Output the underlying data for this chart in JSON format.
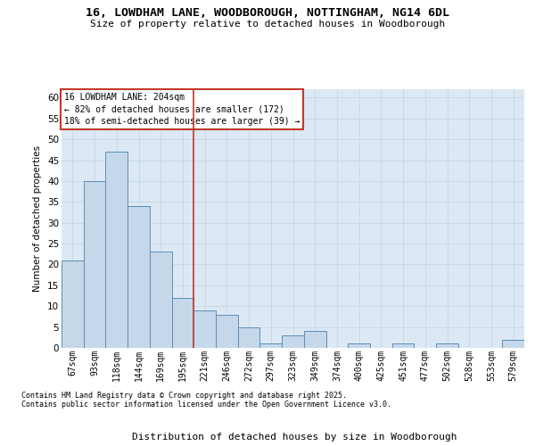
{
  "title_line1": "16, LOWDHAM LANE, WOODBOROUGH, NOTTINGHAM, NG14 6DL",
  "title_line2": "Size of property relative to detached houses in Woodborough",
  "xlabel": "Distribution of detached houses by size in Woodborough",
  "ylabel": "Number of detached properties",
  "categories": [
    "67sqm",
    "93sqm",
    "118sqm",
    "144sqm",
    "169sqm",
    "195sqm",
    "221sqm",
    "246sqm",
    "272sqm",
    "297sqm",
    "323sqm",
    "349sqm",
    "374sqm",
    "400sqm",
    "425sqm",
    "451sqm",
    "477sqm",
    "502sqm",
    "528sqm",
    "553sqm",
    "579sqm"
  ],
  "values": [
    21,
    40,
    47,
    34,
    23,
    12,
    9,
    8,
    5,
    1,
    3,
    4,
    0,
    1,
    0,
    1,
    0,
    1,
    0,
    0,
    2
  ],
  "bar_color": "#c5d8ea",
  "bar_edge_color": "#5a8db5",
  "vline_x": 5.5,
  "vline_color": "#c0392b",
  "annotation_line1": "16 LOWDHAM LANE: 204sqm",
  "annotation_line2": "← 82% of detached houses are smaller (172)",
  "annotation_line3": "18% of semi-detached houses are larger (39) →",
  "annotation_box_color": "#c0392b",
  "annotation_bg": "#ffffff",
  "ylim": [
    0,
    62
  ],
  "yticks": [
    0,
    5,
    10,
    15,
    20,
    25,
    30,
    35,
    40,
    45,
    50,
    55,
    60
  ],
  "grid_color": "#c8d8e8",
  "bg_color": "#dce9f5",
  "footer_line1": "Contains HM Land Registry data © Crown copyright and database right 2025.",
  "footer_line2": "Contains public sector information licensed under the Open Government Licence v3.0."
}
